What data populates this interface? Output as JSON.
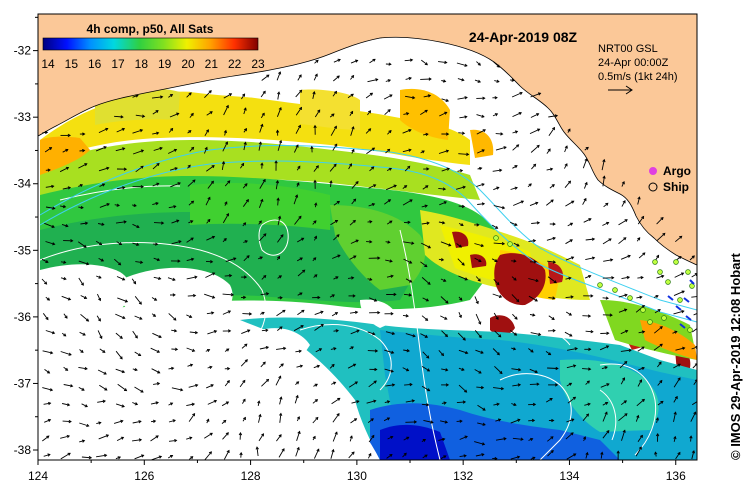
{
  "map": {
    "title": "24-Apr-2019 08Z",
    "colorbar": {
      "title": "4h comp, p50, All Sats",
      "ticks": [
        "14",
        "15",
        "16",
        "17",
        "18",
        "19",
        "20",
        "21",
        "22",
        "23"
      ],
      "min": 14,
      "max": 23
    },
    "info": {
      "line1": "NRT00 GSL",
      "line2": "24-Apr 00:00Z",
      "line3": "0.5m/s (1kt 24h)"
    },
    "legend": {
      "argo_label": "Argo",
      "ship_label": "Ship"
    },
    "credit": "© IMOS 29-Apr-2019 12:08 Hobart",
    "lon_ticks": [
      "124",
      "126",
      "128",
      "130",
      "132",
      "134",
      "136"
    ],
    "lat_ticks": [
      "-32",
      "-33",
      "-34",
      "-35",
      "-36",
      "-37",
      "-38"
    ],
    "lon_range": [
      124,
      136.4
    ],
    "lat_range": [
      -31.45,
      -38.15
    ]
  },
  "colors": {
    "land": "#fbc898",
    "sea_missing": "#ffffff",
    "isobath": "#3fd0f0",
    "contour": "#ffffff",
    "argo": "#e040e0",
    "blobs_red": "#a01010"
  }
}
